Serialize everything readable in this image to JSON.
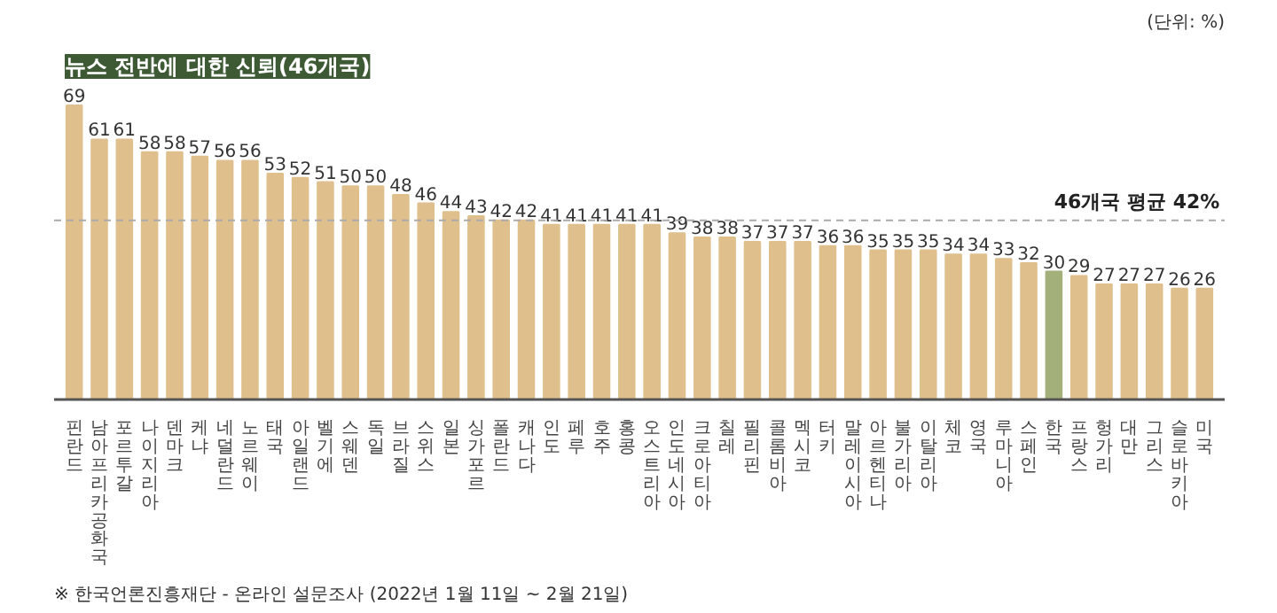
{
  "chart_data": {
    "type": "bar",
    "title": "뉴스 전반에 대한 신뢰(46개국)",
    "subtitle": "(단위: %)",
    "categories": [
      "핀란드",
      "남아프리카공화국",
      "포르투갈",
      "나이지리아",
      "덴마크",
      "케냐",
      "네덜란드",
      "노르웨이",
      "태국",
      "아일랜드",
      "벨기에",
      "스웨덴",
      "독일",
      "브라질",
      "스위스",
      "일본",
      "싱가포르",
      "폴란드",
      "캐나다",
      "인도",
      "페루",
      "호주",
      "홍콩",
      "오스트리아",
      "인도네시아",
      "크로아티아",
      "칠레",
      "필리핀",
      "콜롬비아",
      "멕시코",
      "터키",
      "말레이시아",
      "아르헨티나",
      "불가리아",
      "이탈리아",
      "체코",
      "영국",
      "루마니아",
      "스페인",
      "한국",
      "프랑스",
      "헝가리",
      "대만",
      "그리스",
      "슬로바키아",
      "미국"
    ],
    "values": [
      69,
      61,
      61,
      58,
      58,
      57,
      56,
      56,
      53,
      52,
      51,
      50,
      50,
      48,
      46,
      44,
      43,
      42,
      42,
      41,
      41,
      41,
      41,
      41,
      39,
      38,
      38,
      37,
      37,
      37,
      36,
      36,
      35,
      35,
      35,
      34,
      34,
      33,
      32,
      30,
      29,
      27,
      27,
      27,
      26,
      26
    ],
    "colors": [
      "#dfc08d",
      "#dfc08d",
      "#dfc08d",
      "#dfc08d",
      "#dfc08d",
      "#dfc08d",
      "#dfc08d",
      "#dfc08d",
      "#dfc08d",
      "#dfc08d",
      "#dfc08d",
      "#dfc08d",
      "#dfc08d",
      "#dfc08d",
      "#dfc08d",
      "#dfc08d",
      "#dfc08d",
      "#dfc08d",
      "#dfc08d",
      "#dfc08d",
      "#dfc08d",
      "#dfc08d",
      "#dfc08d",
      "#dfc08d",
      "#dfc08d",
      "#dfc08d",
      "#dfc08d",
      "#dfc08d",
      "#dfc08d",
      "#dfc08d",
      "#dfc08d",
      "#dfc08d",
      "#dfc08d",
      "#dfc08d",
      "#dfc08d",
      "#dfc08d",
      "#dfc08d",
      "#dfc08d",
      "#dfc08d",
      "#a3b07a",
      "#dfc08d",
      "#dfc08d",
      "#dfc08d",
      "#dfc08d",
      "#dfc08d",
      "#dfc08d"
    ],
    "data_labels": true,
    "ref_lines": [
      {
        "axis": "y",
        "value": 42,
        "label": "46개국 평균 42%",
        "color": "#aaaaaa",
        "line_style": "dashed"
      }
    ],
    "annotations": [
      "※ 한국언론진흥재단 - 온라인 설문조사 (2022년 1월 11일 ~ 2월 21일)"
    ]
  }
}
